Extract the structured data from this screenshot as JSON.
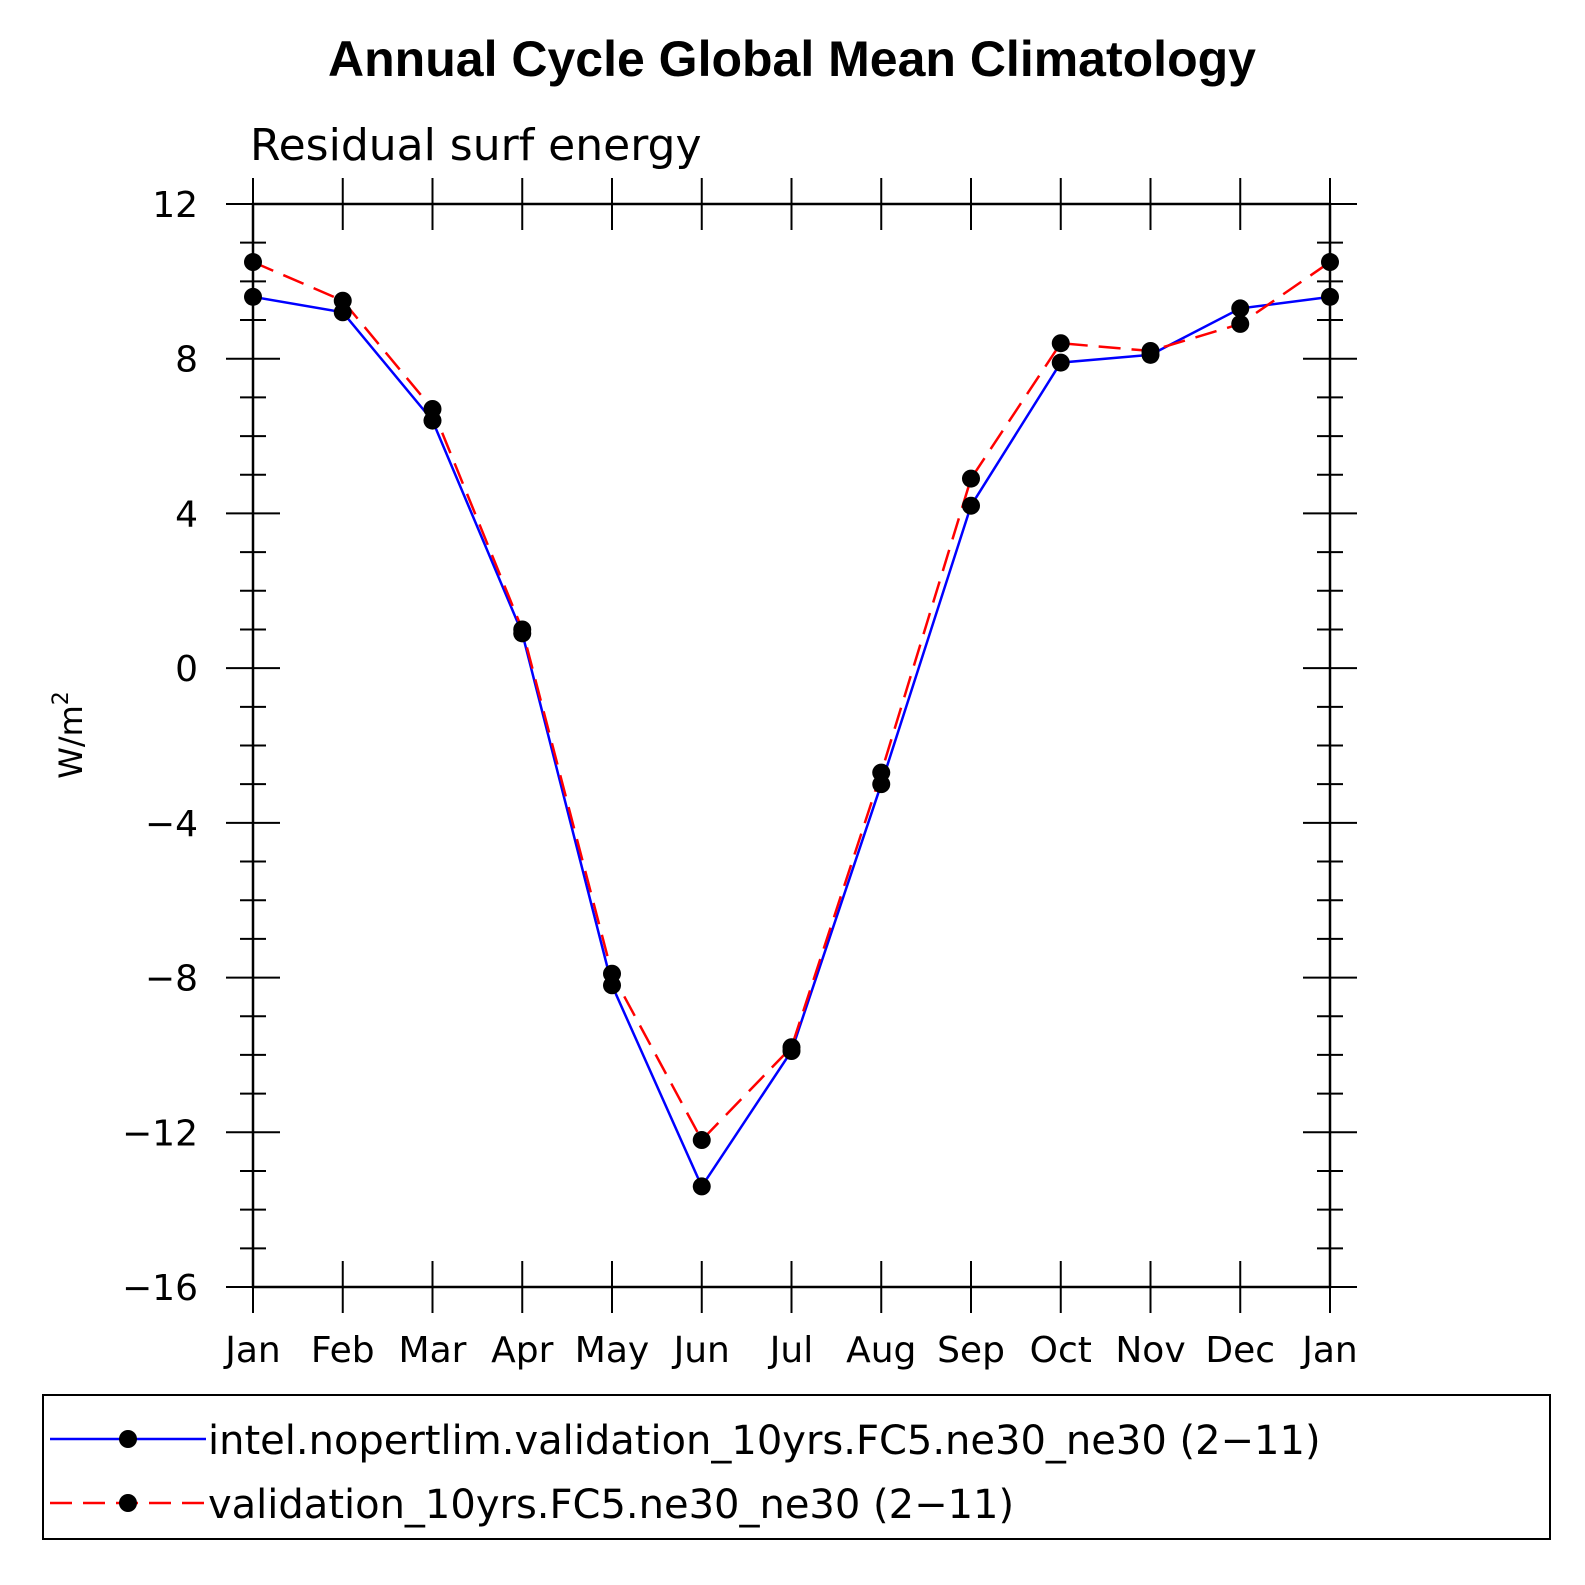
{
  "chart_data": {
    "type": "line",
    "title": "Annual Cycle Global Mean Climatology",
    "subtitle": "Residual surf energy",
    "ylabel": "W/m",
    "ylabel_sup": "2",
    "xlabel": "",
    "categories": [
      "Jan",
      "Feb",
      "Mar",
      "Apr",
      "May",
      "Jun",
      "Jul",
      "Aug",
      "Sep",
      "Oct",
      "Nov",
      "Dec",
      "Jan"
    ],
    "ylim": [
      -16,
      12
    ],
    "yticks": [
      12,
      8,
      4,
      0,
      -4,
      -8,
      -12,
      -16
    ],
    "ytick_labels": [
      "12",
      "8",
      "4",
      "0",
      "−4",
      "−8",
      "−12",
      "−16"
    ],
    "series": [
      {
        "name": "intel.nopertlim.validation_10yrs.FC5.ne30_ne30 (2−11)",
        "color": "#0000ff",
        "dash": "solid",
        "values": [
          9.6,
          9.2,
          6.4,
          0.9,
          -8.2,
          -13.4,
          -9.9,
          -3.0,
          4.2,
          7.9,
          8.1,
          9.3,
          9.6
        ]
      },
      {
        "name": "validation_10yrs.FC5.ne30_ne30 (2−11)",
        "color": "#ff0000",
        "dash": "dashed",
        "values": [
          10.5,
          9.5,
          6.7,
          1.0,
          -7.9,
          -12.2,
          -9.8,
          -2.7,
          4.9,
          8.4,
          8.2,
          8.9,
          10.5
        ]
      }
    ],
    "legend_position": "bottom"
  }
}
